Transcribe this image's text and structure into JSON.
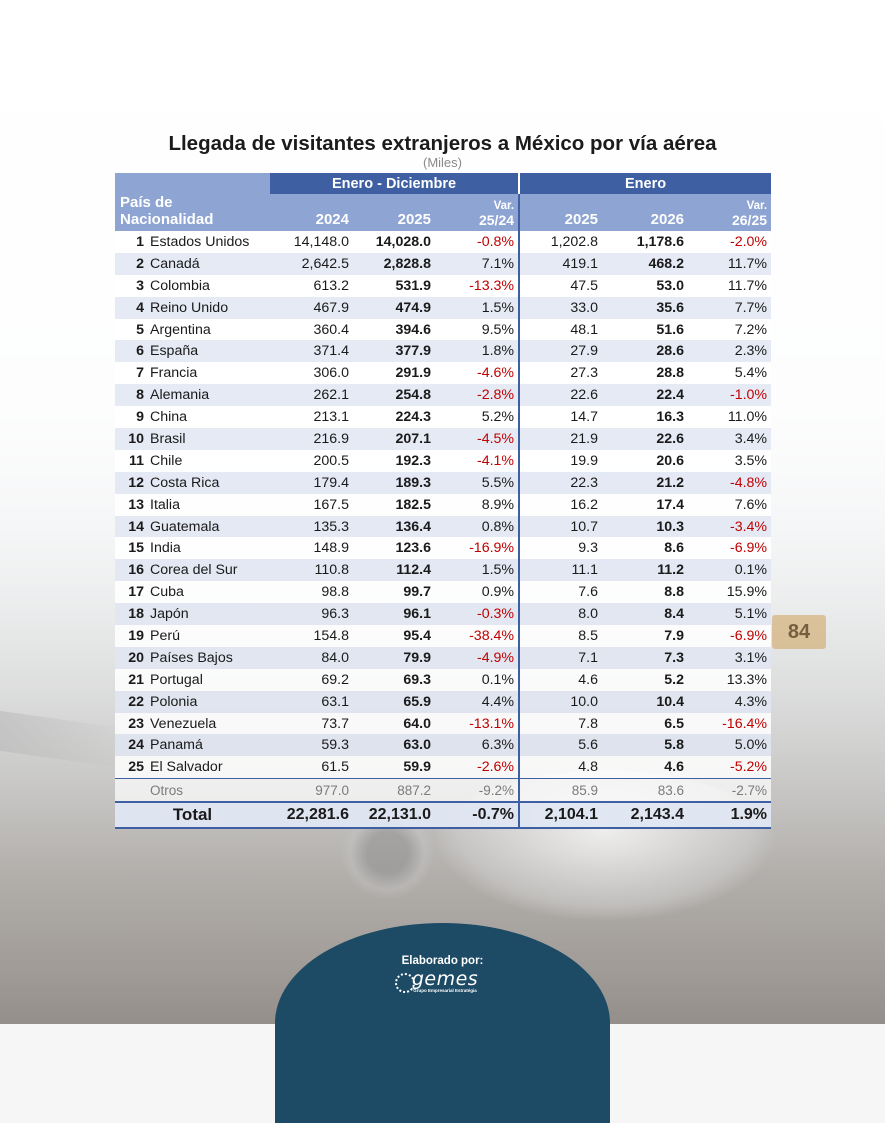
{
  "title": "Llegada de visitantes extranjeros a México por vía aérea",
  "subtitle": "(Miles)",
  "header": {
    "group1": "Enero - Diciembre",
    "group2": "Enero",
    "country_col": "País de Nacionalidad",
    "col_2024": "2024",
    "col_2025a": "2025",
    "var1_top": "Var.",
    "var1_bottom": "25/24",
    "col_2025b": "2025",
    "col_2026": "2026",
    "var2_top": "Var.",
    "var2_bottom": "26/25"
  },
  "rows": [
    {
      "rank": "1",
      "country": "Estados Unidos",
      "y2024": "14,148.0",
      "y2025": "14,028.0",
      "var1": "-0.8%",
      "m2025": "1,202.8",
      "m2026": "1,178.6",
      "var2": "-2.0%"
    },
    {
      "rank": "2",
      "country": "Canadá",
      "y2024": "2,642.5",
      "y2025": "2,828.8",
      "var1": "7.1%",
      "m2025": "419.1",
      "m2026": "468.2",
      "var2": "11.7%"
    },
    {
      "rank": "3",
      "country": "Colombia",
      "y2024": "613.2",
      "y2025": "531.9",
      "var1": "-13.3%",
      "m2025": "47.5",
      "m2026": "53.0",
      "var2": "11.7%"
    },
    {
      "rank": "4",
      "country": "Reino Unido",
      "y2024": "467.9",
      "y2025": "474.9",
      "var1": "1.5%",
      "m2025": "33.0",
      "m2026": "35.6",
      "var2": "7.7%"
    },
    {
      "rank": "5",
      "country": "Argentina",
      "y2024": "360.4",
      "y2025": "394.6",
      "var1": "9.5%",
      "m2025": "48.1",
      "m2026": "51.6",
      "var2": "7.2%"
    },
    {
      "rank": "6",
      "country": "España",
      "y2024": "371.4",
      "y2025": "377.9",
      "var1": "1.8%",
      "m2025": "27.9",
      "m2026": "28.6",
      "var2": "2.3%"
    },
    {
      "rank": "7",
      "country": "Francia",
      "y2024": "306.0",
      "y2025": "291.9",
      "var1": "-4.6%",
      "m2025": "27.3",
      "m2026": "28.8",
      "var2": "5.4%"
    },
    {
      "rank": "8",
      "country": "Alemania",
      "y2024": "262.1",
      "y2025": "254.8",
      "var1": "-2.8%",
      "m2025": "22.6",
      "m2026": "22.4",
      "var2": "-1.0%"
    },
    {
      "rank": "9",
      "country": "China",
      "y2024": "213.1",
      "y2025": "224.3",
      "var1": "5.2%",
      "m2025": "14.7",
      "m2026": "16.3",
      "var2": "11.0%"
    },
    {
      "rank": "10",
      "country": "Brasil",
      "y2024": "216.9",
      "y2025": "207.1",
      "var1": "-4.5%",
      "m2025": "21.9",
      "m2026": "22.6",
      "var2": "3.4%"
    },
    {
      "rank": "11",
      "country": "Chile",
      "y2024": "200.5",
      "y2025": "192.3",
      "var1": "-4.1%",
      "m2025": "19.9",
      "m2026": "20.6",
      "var2": "3.5%"
    },
    {
      "rank": "12",
      "country": "Costa Rica",
      "y2024": "179.4",
      "y2025": "189.3",
      "var1": "5.5%",
      "m2025": "22.3",
      "m2026": "21.2",
      "var2": "-4.8%"
    },
    {
      "rank": "13",
      "country": "Italia",
      "y2024": "167.5",
      "y2025": "182.5",
      "var1": "8.9%",
      "m2025": "16.2",
      "m2026": "17.4",
      "var2": "7.6%"
    },
    {
      "rank": "14",
      "country": "Guatemala",
      "y2024": "135.3",
      "y2025": "136.4",
      "var1": "0.8%",
      "m2025": "10.7",
      "m2026": "10.3",
      "var2": "-3.4%"
    },
    {
      "rank": "15",
      "country": "India",
      "y2024": "148.9",
      "y2025": "123.6",
      "var1": "-16.9%",
      "m2025": "9.3",
      "m2026": "8.6",
      "var2": "-6.9%"
    },
    {
      "rank": "16",
      "country": "Corea del Sur",
      "y2024": "110.8",
      "y2025": "112.4",
      "var1": "1.5%",
      "m2025": "11.1",
      "m2026": "11.2",
      "var2": "0.1%"
    },
    {
      "rank": "17",
      "country": "Cuba",
      "y2024": "98.8",
      "y2025": "99.7",
      "var1": "0.9%",
      "m2025": "7.6",
      "m2026": "8.8",
      "var2": "15.9%"
    },
    {
      "rank": "18",
      "country": "Japón",
      "y2024": "96.3",
      "y2025": "96.1",
      "var1": "-0.3%",
      "m2025": "8.0",
      "m2026": "8.4",
      "var2": "5.1%"
    },
    {
      "rank": "19",
      "country": "Perú",
      "y2024": "154.8",
      "y2025": "95.4",
      "var1": "-38.4%",
      "m2025": "8.5",
      "m2026": "7.9",
      "var2": "-6.9%"
    },
    {
      "rank": "20",
      "country": "Países Bajos",
      "y2024": "84.0",
      "y2025": "79.9",
      "var1": "-4.9%",
      "m2025": "7.1",
      "m2026": "7.3",
      "var2": "3.1%"
    },
    {
      "rank": "21",
      "country": "Portugal",
      "y2024": "69.2",
      "y2025": "69.3",
      "var1": "0.1%",
      "m2025": "4.6",
      "m2026": "5.2",
      "var2": "13.3%"
    },
    {
      "rank": "22",
      "country": "Polonia",
      "y2024": "63.1",
      "y2025": "65.9",
      "var1": "4.4%",
      "m2025": "10.0",
      "m2026": "10.4",
      "var2": "4.3%"
    },
    {
      "rank": "23",
      "country": "Venezuela",
      "y2024": "73.7",
      "y2025": "64.0",
      "var1": "-13.1%",
      "m2025": "7.8",
      "m2026": "6.5",
      "var2": "-16.4%"
    },
    {
      "rank": "24",
      "country": "Panamá",
      "y2024": "59.3",
      "y2025": "63.0",
      "var1": "6.3%",
      "m2025": "5.6",
      "m2026": "5.8",
      "var2": "5.0%"
    },
    {
      "rank": "25",
      "country": "El Salvador",
      "y2024": "61.5",
      "y2025": "59.9",
      "var1": "-2.6%",
      "m2025": "4.8",
      "m2026": "4.6",
      "var2": "-5.2%"
    }
  ],
  "otros": {
    "country": "Otros",
    "y2024": "977.0",
    "y2025": "887.2",
    "var1": "-9.2%",
    "m2025": "85.9",
    "m2026": "83.6",
    "var2": "-2.7%"
  },
  "total": {
    "label": "Total",
    "y2024": "22,281.6",
    "y2025": "22,131.0",
    "var1": "-0.7%",
    "m2025": "2,104.1",
    "m2026": "2,143.4",
    "var2": "1.9%"
  },
  "background_sign": "84",
  "footer": {
    "label": "Elaborado por:",
    "logo_text": "gemes",
    "logo_sub": "Grupo Empresarial Estratégia"
  },
  "colors": {
    "header_dark": "#3f5fa3",
    "header_light": "#8ea4d3",
    "row_alt": "#e0e6f3",
    "negative": "#c00000",
    "footer_bg": "#1d4a64"
  }
}
